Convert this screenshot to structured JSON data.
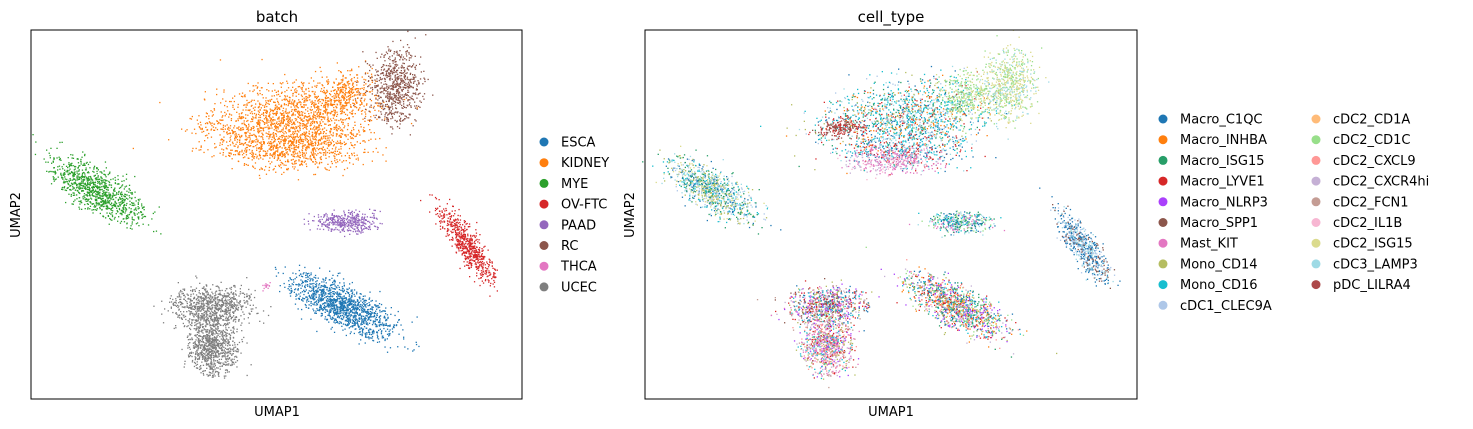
{
  "chart_data": [
    {
      "type": "scatter",
      "title": "batch",
      "xlabel": "UMAP1",
      "ylabel": "UMAP2",
      "legend_position": "right",
      "legend_columns": 1,
      "categories": [
        {
          "name": "ESCA",
          "color": "#1f77b4"
        },
        {
          "name": "KIDNEY",
          "color": "#ff7f0e"
        },
        {
          "name": "MYE",
          "color": "#2ca02c"
        },
        {
          "name": "OV-FTC",
          "color": "#d62728"
        },
        {
          "name": "PAAD",
          "color": "#9467bd"
        },
        {
          "name": "RC",
          "color": "#8c564b"
        },
        {
          "name": "THCA",
          "color": "#e377c2"
        },
        {
          "name": "UCEC",
          "color": "#7f7f7f"
        }
      ]
    },
    {
      "type": "scatter",
      "title": "cell_type",
      "xlabel": "UMAP1",
      "ylabel": "UMAP2",
      "legend_position": "right",
      "legend_columns": 2,
      "categories": [
        {
          "name": "Macro_C1QC",
          "color": "#1f77b4"
        },
        {
          "name": "Macro_INHBA",
          "color": "#ff7f0e"
        },
        {
          "name": "Macro_ISG15",
          "color": "#279e68"
        },
        {
          "name": "Macro_LYVE1",
          "color": "#d62728"
        },
        {
          "name": "Macro_NLRP3",
          "color": "#aa40fc"
        },
        {
          "name": "Macro_SPP1",
          "color": "#8c564b"
        },
        {
          "name": "Mast_KIT",
          "color": "#e377c2"
        },
        {
          "name": "Mono_CD14",
          "color": "#b5bd61"
        },
        {
          "name": "Mono_CD16",
          "color": "#17becf"
        },
        {
          "name": "cDC1_CLEC9A",
          "color": "#aec7e8"
        },
        {
          "name": "cDC2_CD1A",
          "color": "#ffbb78"
        },
        {
          "name": "cDC2_CD1C",
          "color": "#98df8a"
        },
        {
          "name": "cDC2_CXCL9",
          "color": "#ff9896"
        },
        {
          "name": "cDC2_CXCR4hi",
          "color": "#c5b0d5"
        },
        {
          "name": "cDC2_FCN1",
          "color": "#c49c94"
        },
        {
          "name": "cDC2_IL1B",
          "color": "#f7b6d2"
        },
        {
          "name": "cDC2_ISG15",
          "color": "#dbdb8d"
        },
        {
          "name": "cDC3_LAMP3",
          "color": "#9edae5"
        },
        {
          "name": "pDC_LILRA4",
          "color": "#ad494a"
        }
      ]
    }
  ]
}
